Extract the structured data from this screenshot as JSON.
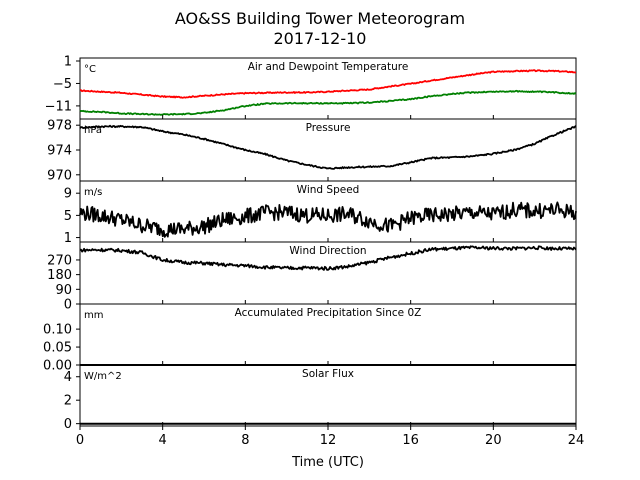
{
  "title_line1": "AO&SS Building Tower Meteorogram",
  "title_line2": "2017-12-10",
  "xlabel": "Time (UTC)",
  "chart_data": [
    {
      "id": "temperature",
      "type": "line",
      "title": "Air and Dewpoint Temperature",
      "unit": "°C",
      "ylim": [
        -14.5,
        1.8
      ],
      "yticks": [
        1,
        -5,
        -11
      ],
      "series": [
        {
          "color": "#ff0000",
          "x": [
            0,
            1,
            2,
            3,
            4,
            5,
            6,
            7,
            8,
            9,
            10,
            11,
            12,
            13,
            14,
            15,
            16,
            17,
            18,
            19,
            20,
            21,
            22,
            23,
            24
          ],
          "y": [
            -6.9,
            -7.2,
            -7.5,
            -8.0,
            -8.5,
            -8.7,
            -8.3,
            -7.9,
            -7.6,
            -7.5,
            -7.4,
            -7.4,
            -7.2,
            -6.9,
            -6.6,
            -5.8,
            -5.1,
            -4.2,
            -3.4,
            -2.6,
            -1.9,
            -1.7,
            -1.6,
            -1.7,
            -2.0
          ]
        },
        {
          "color": "#008000",
          "x": [
            0,
            1,
            2,
            3,
            4,
            5,
            6,
            7,
            8,
            9,
            10,
            11,
            12,
            13,
            14,
            15,
            16,
            17,
            18,
            19,
            20,
            21,
            22,
            23,
            24
          ],
          "y": [
            -12.4,
            -12.6,
            -13.0,
            -13.2,
            -13.3,
            -13.2,
            -12.9,
            -12.1,
            -11.0,
            -10.4,
            -10.3,
            -10.3,
            -10.3,
            -10.3,
            -10.1,
            -9.7,
            -9.2,
            -8.4,
            -7.8,
            -7.4,
            -7.2,
            -7.1,
            -7.2,
            -7.4,
            -7.7
          ]
        }
      ]
    },
    {
      "id": "pressure",
      "type": "line",
      "title": "Pressure",
      "unit": "hPa",
      "ylim": [
        969.0,
        979.0
      ],
      "yticks": [
        978,
        974,
        970
      ],
      "series": [
        {
          "color": "#000000",
          "x": [
            0,
            1,
            2,
            3,
            4,
            5,
            6,
            7,
            8,
            9,
            10,
            11,
            12,
            13,
            14,
            15,
            16,
            17,
            18,
            19,
            20,
            21,
            22,
            23,
            24
          ],
          "y": [
            977.6,
            977.8,
            977.8,
            977.7,
            977.0,
            976.5,
            975.8,
            974.9,
            974.0,
            973.3,
            972.3,
            971.6,
            971.0,
            971.2,
            971.3,
            971.4,
            972.0,
            972.7,
            972.8,
            973.0,
            973.4,
            974.0,
            975.0,
            976.5,
            977.8
          ]
        }
      ]
    },
    {
      "id": "wind-speed",
      "type": "line",
      "title": "Wind Speed",
      "unit": "m/s",
      "ylim": [
        0.2,
        11.2
      ],
      "yticks": [
        9,
        5,
        1
      ],
      "series": [
        {
          "color": "#000000",
          "x": [
            0,
            1,
            2,
            3,
            4,
            5,
            6,
            7,
            8,
            9,
            10,
            11,
            12,
            13,
            14,
            15,
            16,
            17,
            18,
            19,
            20,
            21,
            22,
            23,
            24
          ],
          "y": [
            5.5,
            5.0,
            4.2,
            3.2,
            2.5,
            2.5,
            3.0,
            4.2,
            4.8,
            5.5,
            5.5,
            5.0,
            5.0,
            5.2,
            4.0,
            3.0,
            4.5,
            5.0,
            5.2,
            5.5,
            5.2,
            6.0,
            5.8,
            6.0,
            5.5
          ]
        }
      ]
    },
    {
      "id": "wind-direction",
      "type": "line",
      "title": "Wind Direction",
      "unit": "",
      "ylim": [
        0,
        380
      ],
      "yticks": [
        270,
        180,
        90,
        0
      ],
      "series": [
        {
          "color": "#000000",
          "x": [
            0,
            1,
            2,
            3,
            4,
            5,
            6,
            7,
            8,
            9,
            10,
            11,
            12,
            13,
            14,
            15,
            16,
            17,
            18,
            19,
            20,
            21,
            22,
            23,
            24
          ],
          "y": [
            330,
            332,
            328,
            315,
            270,
            255,
            250,
            240,
            235,
            225,
            220,
            222,
            218,
            230,
            255,
            285,
            310,
            335,
            340,
            345,
            342,
            340,
            345,
            340,
            338
          ]
        }
      ]
    },
    {
      "id": "precipitation",
      "type": "line",
      "title": "Accumulated Precipitation Since 0Z",
      "unit": "mm",
      "ylim": [
        0,
        0.17
      ],
      "yticks": [
        0.1,
        0.05,
        0.0
      ],
      "series": [
        {
          "color": "#000000",
          "x": [
            0,
            24
          ],
          "y": [
            0,
            0
          ]
        }
      ]
    },
    {
      "id": "solar-flux",
      "type": "line",
      "title": "Solar Flux",
      "unit": "W/m^2",
      "ylim": [
        -0.2,
        5.0
      ],
      "yticks": [
        4,
        2,
        0
      ],
      "series": [
        {
          "color": "#000000",
          "x": [
            0,
            24
          ],
          "y": [
            0,
            0
          ]
        }
      ]
    }
  ],
  "xticks": [
    0,
    4,
    8,
    12,
    16,
    20,
    24
  ],
  "xlim": [
    0,
    24
  ]
}
